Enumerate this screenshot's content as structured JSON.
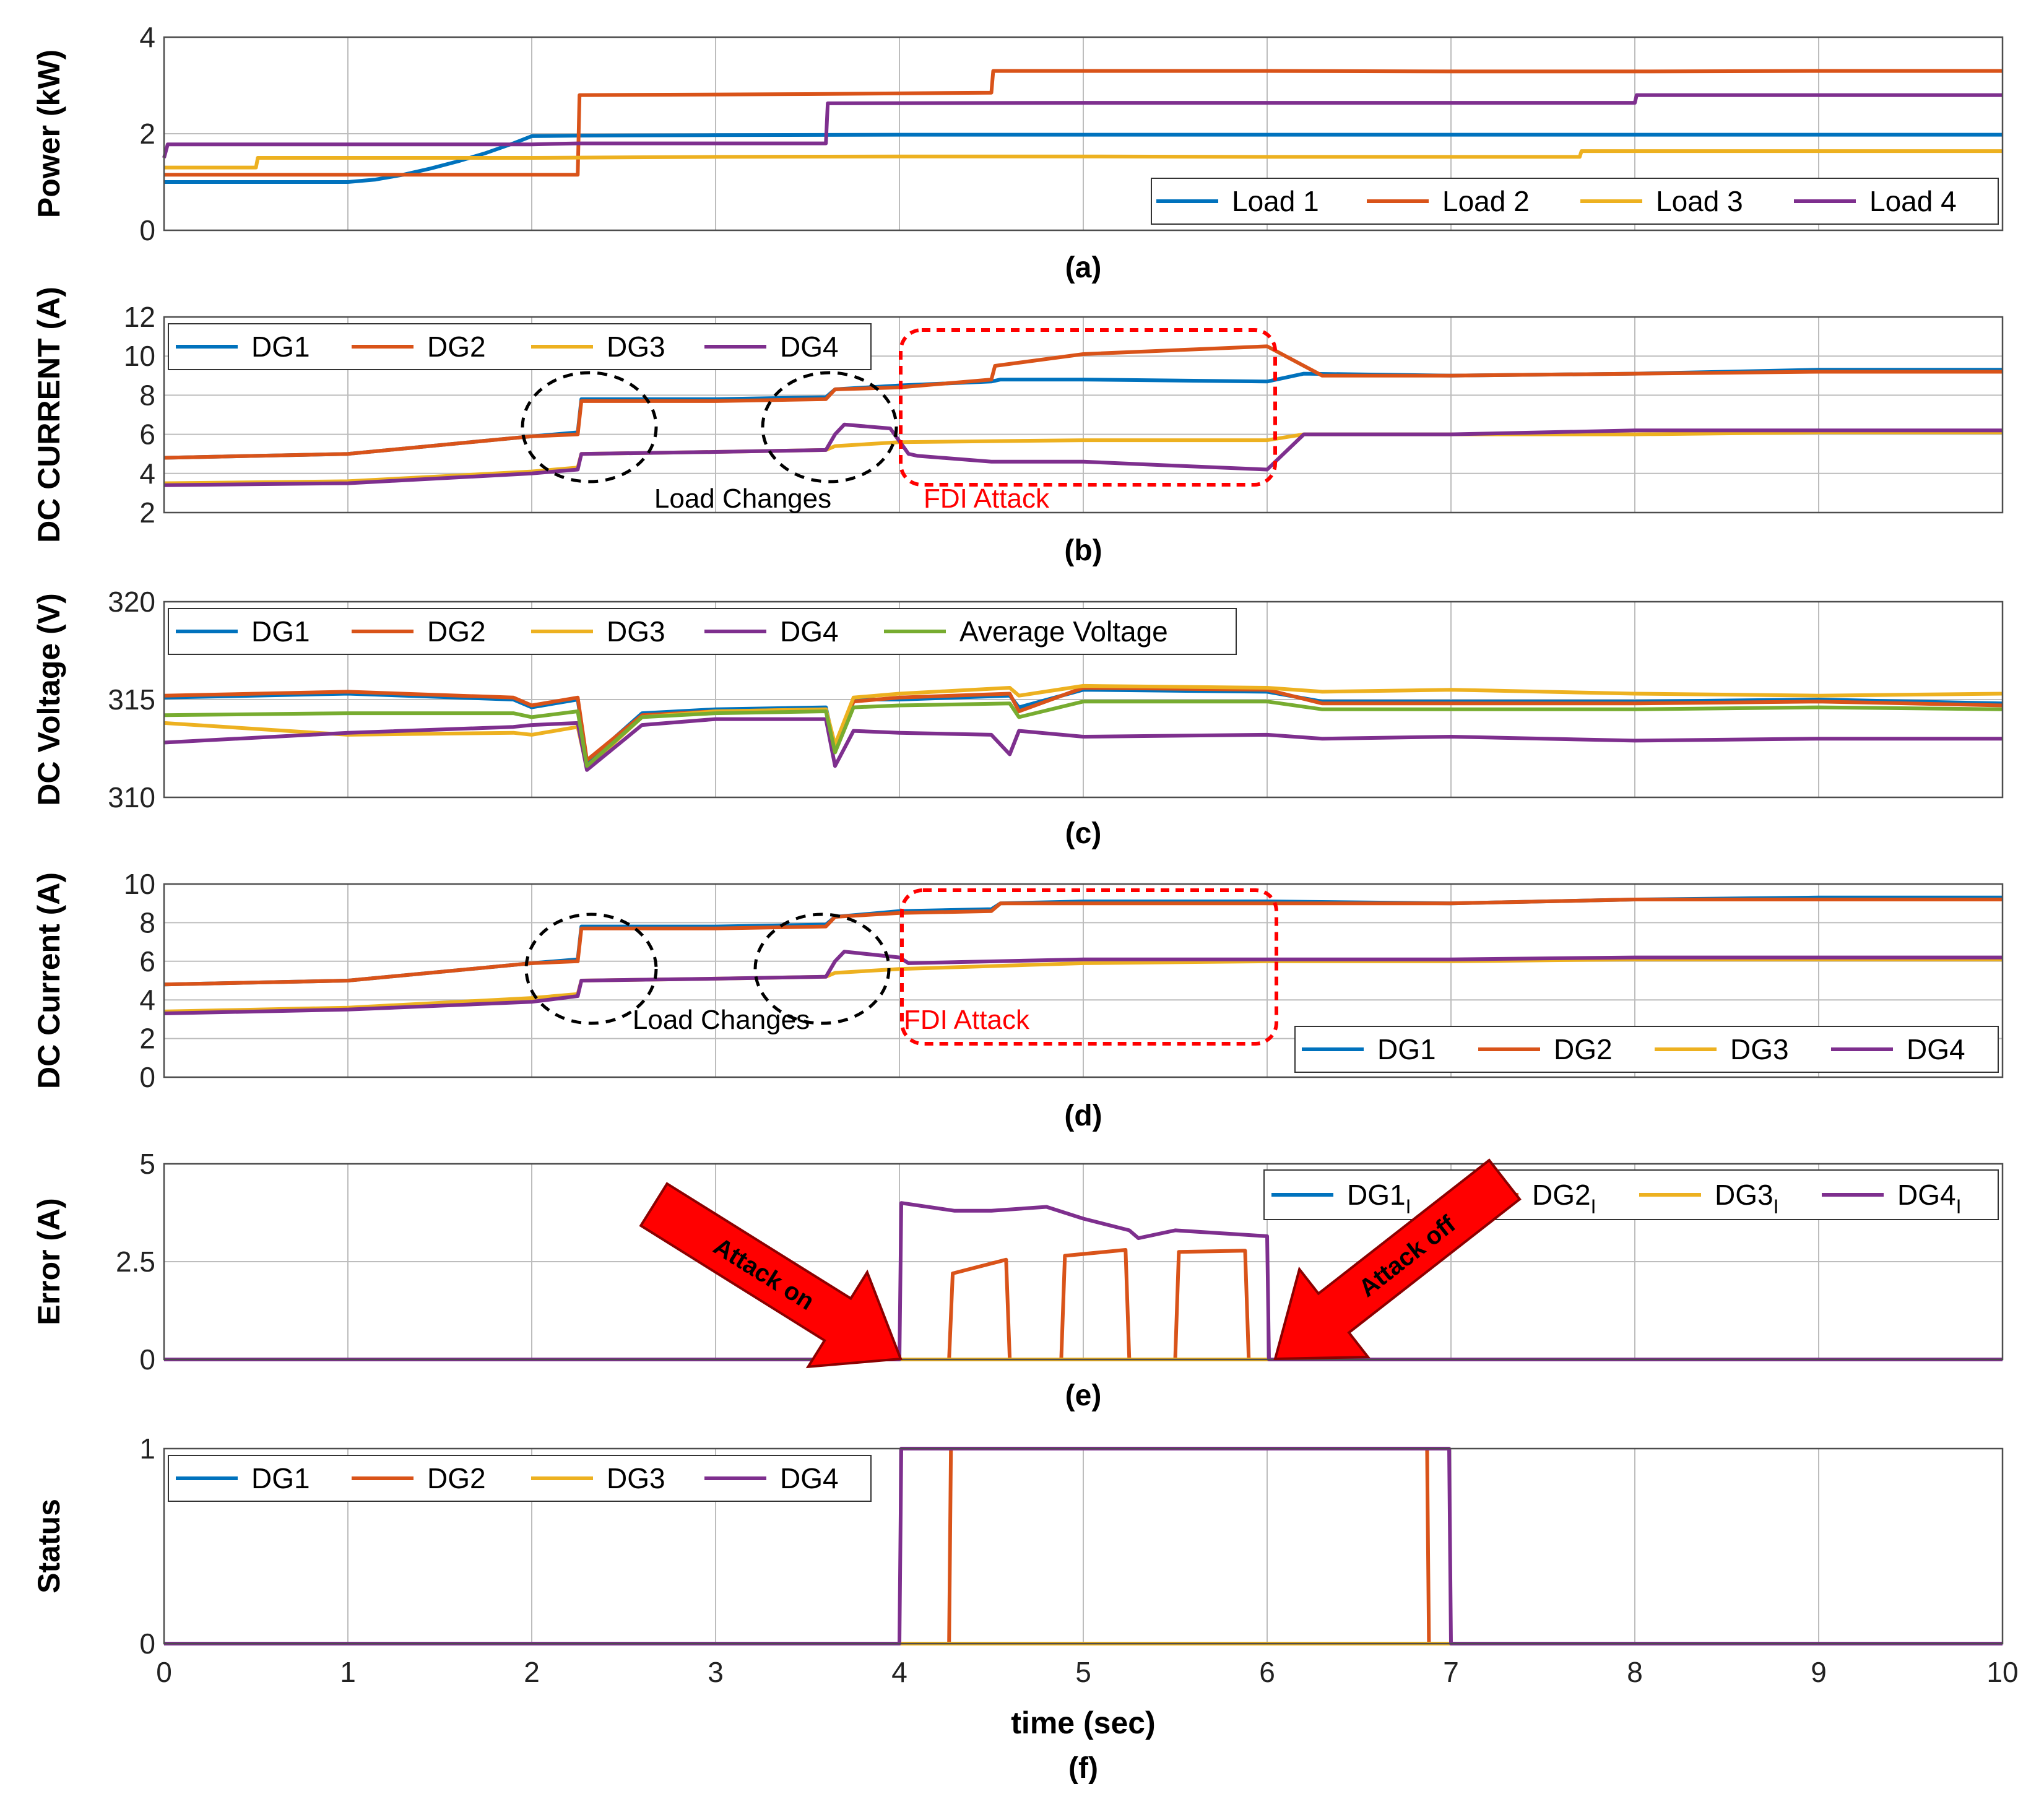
{
  "figure": {
    "xaxis": {
      "label": "time (sec)",
      "ticks": [
        "0",
        "1",
        "2",
        "3",
        "4",
        "5",
        "6",
        "7",
        "8",
        "9",
        "10"
      ],
      "lim": [
        0,
        10
      ]
    },
    "colors": {
      "blue": "#0072BD",
      "orange": "#D95319",
      "yellow": "#EDB120",
      "purple": "#7E2F8E",
      "green": "#77AC30",
      "red": "#FF0000",
      "grid": "#bdbdbd",
      "arrowFill": "#FF0000",
      "arrowStroke": "#8b0000"
    }
  },
  "chart_data": [
    {
      "id": "a",
      "type": "line",
      "caption": "(a)",
      "ylabel": "Power (kW)",
      "ylim": [
        0,
        4
      ],
      "yticks": [
        "0",
        "2",
        "4"
      ],
      "legend_position": "bottom-right",
      "series": [
        {
          "name": "Load 1",
          "color": "blue",
          "x": [
            0,
            1,
            1.15,
            1.3,
            1.45,
            1.6,
            1.75,
            1.9,
            2,
            2.25,
            3,
            4,
            5,
            6,
            7,
            8,
            9,
            10
          ],
          "y": [
            1,
            1,
            1.05,
            1.15,
            1.28,
            1.43,
            1.6,
            1.8,
            1.95,
            1.96,
            1.97,
            1.98,
            1.98,
            1.98,
            1.98,
            1.98,
            1.98,
            1.98
          ]
        },
        {
          "name": "Load 2",
          "color": "orange",
          "x": [
            0,
            2.25,
            2.26,
            3.5,
            4.5,
            4.51,
            6,
            7,
            8,
            9,
            10
          ],
          "y": [
            1.15,
            1.15,
            2.8,
            2.82,
            2.85,
            3.3,
            3.3,
            3.29,
            3.29,
            3.3,
            3.3
          ]
        },
        {
          "name": "Load 3",
          "color": "yellow",
          "x": [
            0,
            0.5,
            0.51,
            2,
            3,
            4,
            5,
            6,
            7,
            7.7,
            7.71,
            10
          ],
          "y": [
            1.3,
            1.3,
            1.5,
            1.5,
            1.52,
            1.53,
            1.53,
            1.52,
            1.52,
            1.52,
            1.64,
            1.64
          ]
        },
        {
          "name": "Load 4",
          "color": "purple",
          "x": [
            0,
            0.02,
            2,
            2.25,
            3.6,
            3.61,
            5,
            6,
            8,
            8.01,
            10
          ],
          "y": [
            1.5,
            1.78,
            1.78,
            1.8,
            1.8,
            2.63,
            2.64,
            2.64,
            2.64,
            2.8,
            2.8
          ]
        }
      ]
    },
    {
      "id": "b",
      "type": "line",
      "caption": "(b)",
      "ylabel": "DC CURRENT (A)",
      "ylim": [
        2,
        12
      ],
      "yticks": [
        "2",
        "4",
        "6",
        "8",
        "10",
        "12"
      ],
      "legend_position": "top-left",
      "annotations": {
        "load_changes": "Load Changes",
        "fdi_attack": "FDI Attack"
      },
      "series": [
        {
          "name": "DG1",
          "color": "blue",
          "x": [
            0,
            1,
            2,
            2.25,
            2.27,
            3,
            3.6,
            3.65,
            4,
            4.5,
            4.55,
            5,
            6,
            6.2,
            7,
            8,
            9,
            10
          ],
          "y": [
            4.8,
            5,
            5.9,
            6.1,
            7.8,
            7.8,
            7.9,
            8.3,
            8.5,
            8.7,
            8.8,
            8.8,
            8.7,
            9.1,
            9,
            9.1,
            9.3,
            9.3
          ]
        },
        {
          "name": "DG2",
          "color": "orange",
          "x": [
            0,
            1,
            2,
            2.25,
            2.27,
            3,
            3.6,
            3.65,
            4,
            4.5,
            4.52,
            5,
            6,
            6.3,
            7,
            8,
            9,
            10
          ],
          "y": [
            4.8,
            5,
            5.9,
            6,
            7.7,
            7.7,
            7.8,
            8.3,
            8.4,
            8.8,
            9.5,
            10.1,
            10.5,
            9,
            9,
            9.1,
            9.2,
            9.2
          ]
        },
        {
          "name": "DG3",
          "color": "yellow",
          "x": [
            0,
            1,
            2,
            2.25,
            2.27,
            3,
            3.6,
            3.65,
            4,
            5,
            6,
            6.2,
            7,
            8,
            9,
            10
          ],
          "y": [
            3.5,
            3.6,
            4.1,
            4.3,
            5,
            5.1,
            5.2,
            5.4,
            5.6,
            5.7,
            5.7,
            6,
            6,
            6,
            6.1,
            6.1
          ]
        },
        {
          "name": "DG4",
          "color": "purple",
          "x": [
            0,
            1,
            2,
            2.25,
            2.27,
            3,
            3.6,
            3.65,
            3.7,
            3.95,
            4.05,
            4.1,
            4.5,
            5,
            5.5,
            6,
            6.2,
            7,
            8,
            9,
            10
          ],
          "y": [
            3.4,
            3.5,
            4,
            4.2,
            5,
            5.1,
            5.2,
            6,
            6.5,
            6.3,
            5,
            4.9,
            4.6,
            4.6,
            4.4,
            4.2,
            6,
            6,
            6.2,
            6.2,
            6.2
          ]
        }
      ]
    },
    {
      "id": "c",
      "type": "line",
      "caption": "(c)",
      "ylabel": "DC Voltage (V)",
      "ylim": [
        310,
        320
      ],
      "yticks": [
        "310",
        "315",
        "320"
      ],
      "legend_position": "top-left",
      "series": [
        {
          "name": "DG1",
          "color": "blue",
          "x": [
            0,
            1,
            1.9,
            2,
            2.25,
            2.3,
            2.6,
            3,
            3.6,
            3.65,
            3.75,
            4,
            4.6,
            4.65,
            5,
            6,
            6.3,
            7,
            8,
            9,
            10
          ],
          "y": [
            315.1,
            315.3,
            315,
            314.6,
            315,
            311.8,
            314.3,
            314.5,
            314.6,
            312.5,
            315,
            315,
            315.2,
            314.6,
            315.5,
            315.4,
            314.9,
            314.9,
            314.9,
            315,
            314.8
          ]
        },
        {
          "name": "DG2",
          "color": "orange",
          "x": [
            0,
            1,
            1.9,
            2,
            2.25,
            2.3,
            2.6,
            3,
            3.6,
            3.65,
            3.75,
            4,
            4.6,
            4.65,
            5,
            6,
            6.3,
            7,
            8,
            9,
            10
          ],
          "y": [
            315.2,
            315.4,
            315.1,
            314.7,
            315.1,
            311.9,
            314.2,
            314.4,
            314.5,
            312.3,
            314.9,
            315.1,
            315.3,
            314.4,
            315.6,
            315.5,
            314.8,
            314.8,
            314.8,
            314.9,
            314.7
          ]
        },
        {
          "name": "DG3",
          "color": "yellow",
          "x": [
            0,
            1,
            1.9,
            2,
            2.25,
            2.3,
            2.6,
            3,
            3.6,
            3.65,
            3.75,
            4,
            4.6,
            4.65,
            5,
            6,
            6.3,
            7,
            8,
            9,
            10
          ],
          "y": [
            313.8,
            313.2,
            313.3,
            313.2,
            313.6,
            311.5,
            314.1,
            314.4,
            314.5,
            312.7,
            315.1,
            315.3,
            315.6,
            315.2,
            315.7,
            315.6,
            315.4,
            315.5,
            315.3,
            315.2,
            315.3
          ]
        },
        {
          "name": "DG4",
          "color": "purple",
          "x": [
            0,
            1,
            1.9,
            2,
            2.25,
            2.3,
            2.6,
            3,
            3.6,
            3.65,
            3.75,
            4,
            4.5,
            4.6,
            4.65,
            5,
            6,
            6.3,
            7,
            8,
            9,
            10
          ],
          "y": [
            312.8,
            313.3,
            313.6,
            313.7,
            313.8,
            311.4,
            313.7,
            314,
            314,
            311.6,
            313.4,
            313.3,
            313.2,
            312.2,
            313.4,
            313.1,
            313.2,
            313,
            313.1,
            312.9,
            313,
            313
          ]
        },
        {
          "name": "Average Voltage",
          "color": "green",
          "x": [
            0,
            1,
            1.9,
            2,
            2.25,
            2.3,
            2.6,
            3,
            3.6,
            3.65,
            3.75,
            4,
            4.6,
            4.65,
            5,
            6,
            6.3,
            7,
            8,
            9,
            10
          ],
          "y": [
            314.2,
            314.3,
            314.3,
            314.1,
            314.4,
            311.6,
            314.1,
            314.3,
            314.4,
            312.3,
            314.6,
            314.7,
            314.8,
            314.1,
            314.9,
            314.9,
            314.5,
            314.5,
            314.5,
            314.6,
            314.5
          ]
        }
      ]
    },
    {
      "id": "d",
      "type": "line",
      "caption": "(d)",
      "ylabel": "DC Current (A)",
      "ylim": [
        0,
        10
      ],
      "yticks": [
        "0",
        "2",
        "4",
        "6",
        "8",
        "10"
      ],
      "legend_position": "bottom-right",
      "annotations": {
        "load_changes": "Load Changes",
        "fdi_attack": "FDI Attack"
      },
      "series": [
        {
          "name": "DG1",
          "color": "blue",
          "x": [
            0,
            1,
            2,
            2.25,
            2.27,
            3,
            3.6,
            3.65,
            4,
            4.5,
            4.55,
            5,
            6,
            7,
            8,
            9,
            10
          ],
          "y": [
            4.8,
            5,
            5.9,
            6.1,
            7.8,
            7.8,
            7.9,
            8.3,
            8.6,
            8.7,
            9,
            9.1,
            9.1,
            9,
            9.2,
            9.3,
            9.3
          ]
        },
        {
          "name": "DG2",
          "color": "orange",
          "x": [
            0,
            1,
            2,
            2.25,
            2.27,
            3,
            3.6,
            3.65,
            4,
            4.5,
            4.55,
            5,
            6,
            7,
            8,
            9,
            10
          ],
          "y": [
            4.8,
            5,
            5.9,
            6,
            7.7,
            7.7,
            7.8,
            8.3,
            8.5,
            8.6,
            9,
            9,
            9,
            9,
            9.2,
            9.2,
            9.2
          ]
        },
        {
          "name": "DG3",
          "color": "yellow",
          "x": [
            0,
            1,
            2,
            2.25,
            2.27,
            3,
            3.6,
            3.65,
            4,
            5,
            6,
            7,
            8,
            9,
            10
          ],
          "y": [
            3.4,
            3.6,
            4.1,
            4.3,
            5,
            5.1,
            5.2,
            5.4,
            5.6,
            5.9,
            6,
            6,
            6.1,
            6.1,
            6.1
          ]
        },
        {
          "name": "DG4",
          "color": "purple",
          "x": [
            0,
            1,
            2,
            2.25,
            2.27,
            3,
            3.6,
            3.65,
            3.7,
            4,
            4.05,
            5,
            6,
            7,
            8,
            9,
            10
          ],
          "y": [
            3.3,
            3.5,
            3.9,
            4.2,
            5,
            5.1,
            5.2,
            6,
            6.5,
            6.2,
            5.9,
            6.1,
            6.1,
            6.1,
            6.2,
            6.2,
            6.2
          ]
        }
      ]
    },
    {
      "id": "e",
      "type": "line",
      "caption": "(e)",
      "ylabel": "Error (A)",
      "ylim": [
        0,
        5
      ],
      "yticks": [
        "0",
        "2.5",
        "5"
      ],
      "legend_position": "top-right",
      "annotations": {
        "attack_on": "Attack on",
        "attack_off": "Attack off"
      },
      "series": [
        {
          "name": "DG1",
          "subscript": "I",
          "color": "blue",
          "x": [
            0,
            10
          ],
          "y": [
            0,
            0
          ]
        },
        {
          "name": "DG2",
          "subscript": "I",
          "color": "orange",
          "x": [
            0,
            4.27,
            4.29,
            4.58,
            4.6,
            4.88,
            4.9,
            5.23,
            5.25,
            5.5,
            5.52,
            5.88,
            5.9,
            10
          ],
          "y": [
            0,
            0,
            2.2,
            2.55,
            0,
            0,
            2.65,
            2.8,
            0,
            0,
            2.75,
            2.78,
            0,
            0
          ]
        },
        {
          "name": "DG3",
          "subscript": "I",
          "color": "yellow",
          "x": [
            0,
            10
          ],
          "y": [
            0,
            0
          ]
        },
        {
          "name": "DG4",
          "subscript": "I",
          "color": "purple",
          "x": [
            0,
            4,
            4.01,
            4.3,
            4.5,
            4.8,
            5,
            5.25,
            5.3,
            5.5,
            6,
            6.01,
            10
          ],
          "y": [
            0,
            0,
            4,
            3.8,
            3.8,
            3.9,
            3.6,
            3.3,
            3.1,
            3.3,
            3.15,
            0,
            0
          ]
        }
      ]
    },
    {
      "id": "f",
      "type": "line",
      "caption": "(f)",
      "ylabel": "Status",
      "ylim": [
        0,
        1
      ],
      "yticks": [
        "0",
        "1"
      ],
      "legend_position": "top-left",
      "series": [
        {
          "name": "DG1",
          "color": "blue",
          "x": [
            0,
            10
          ],
          "y": [
            0,
            0
          ]
        },
        {
          "name": "DG2",
          "color": "orange",
          "x": [
            0,
            4.27,
            4.28,
            6.87,
            6.88,
            10
          ],
          "y": [
            0,
            0,
            1,
            1,
            0,
            0
          ]
        },
        {
          "name": "DG3",
          "color": "yellow",
          "x": [
            0,
            10
          ],
          "y": [
            0,
            0
          ]
        },
        {
          "name": "DG4",
          "color": "purple",
          "x": [
            0,
            4,
            4.01,
            6.99,
            7,
            10
          ],
          "y": [
            0,
            0,
            1,
            1,
            0,
            0
          ]
        }
      ]
    }
  ]
}
